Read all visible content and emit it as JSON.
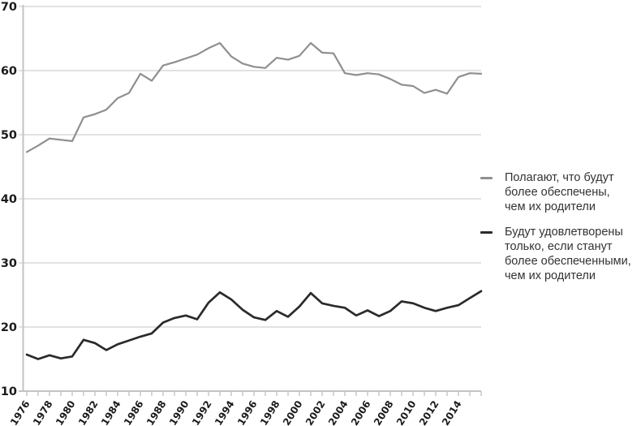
{
  "chart_data": {
    "type": "line",
    "title": "",
    "xlabel": "",
    "ylabel": "",
    "grid": "horizontal",
    "legend_position": "right",
    "ylim": [
      10,
      70
    ],
    "yticks": [
      10,
      20,
      30,
      40,
      50,
      60,
      70
    ],
    "xtick_labels": [
      1976,
      1978,
      1980,
      1982,
      1984,
      1986,
      1988,
      1990,
      1992,
      1994,
      1996,
      1998,
      2000,
      2002,
      2004,
      2006,
      2008,
      2010,
      2012,
      2014
    ],
    "x": [
      1976,
      1977,
      1978,
      1979,
      1980,
      1981,
      1982,
      1983,
      1984,
      1985,
      1986,
      1987,
      1988,
      1989,
      1990,
      1991,
      1992,
      1993,
      1994,
      1995,
      1996,
      1997,
      1998,
      1999,
      2000,
      2001,
      2002,
      2003,
      2004,
      2005,
      2006,
      2007,
      2008,
      2009,
      2010,
      2011,
      2012,
      2013,
      2014,
      2015,
      2016
    ],
    "series": [
      {
        "name": "Полагают, что будут более обеспечены, чем их родители",
        "color": "#8f8f8f",
        "stroke_width": 2.2,
        "values": [
          47.3,
          48.3,
          49.4,
          49.2,
          49.0,
          52.7,
          53.2,
          53.9,
          55.7,
          56.5,
          59.5,
          58.4,
          60.8,
          61.3,
          61.9,
          62.5,
          63.5,
          64.3,
          62.2,
          61.1,
          60.6,
          60.4,
          62.0,
          61.7,
          62.3,
          64.3,
          62.8,
          62.7,
          59.6,
          59.3,
          59.6,
          59.4,
          58.7,
          57.8,
          57.6,
          56.5,
          57.0,
          56.4,
          59.0,
          59.6,
          59.5
        ]
      },
      {
        "name": "Будут удовлетворены только, если станут более обеспеченными, чем их родители",
        "color": "#2a2a2a",
        "stroke_width": 2.7,
        "values": [
          15.7,
          15.0,
          15.6,
          15.1,
          15.4,
          18.0,
          17.5,
          16.4,
          17.3,
          17.9,
          18.5,
          19.0,
          20.7,
          21.4,
          21.8,
          21.2,
          23.8,
          25.4,
          24.3,
          22.7,
          21.5,
          21.1,
          22.5,
          21.6,
          23.2,
          25.3,
          23.7,
          23.3,
          23.0,
          21.8,
          22.6,
          21.7,
          22.5,
          24.0,
          23.7,
          23.0,
          22.5,
          23.0,
          23.4,
          24.5,
          25.6
        ]
      }
    ]
  },
  "legend": {
    "items": [
      {
        "label": "Полагают, что будут\nболее обеспечены,\nчем их родители"
      },
      {
        "label": "Будут удовлетворены\nтолько, если станут\nболее обеспеченными,\nчем их родители"
      }
    ]
  },
  "colors": {
    "background": "#ffffff",
    "grid": "#d9d9d9",
    "axis": "#c3c3c3",
    "tick": "#c0c0c0",
    "tick_label": "#1b1b1b",
    "legend_text": "#333333"
  }
}
